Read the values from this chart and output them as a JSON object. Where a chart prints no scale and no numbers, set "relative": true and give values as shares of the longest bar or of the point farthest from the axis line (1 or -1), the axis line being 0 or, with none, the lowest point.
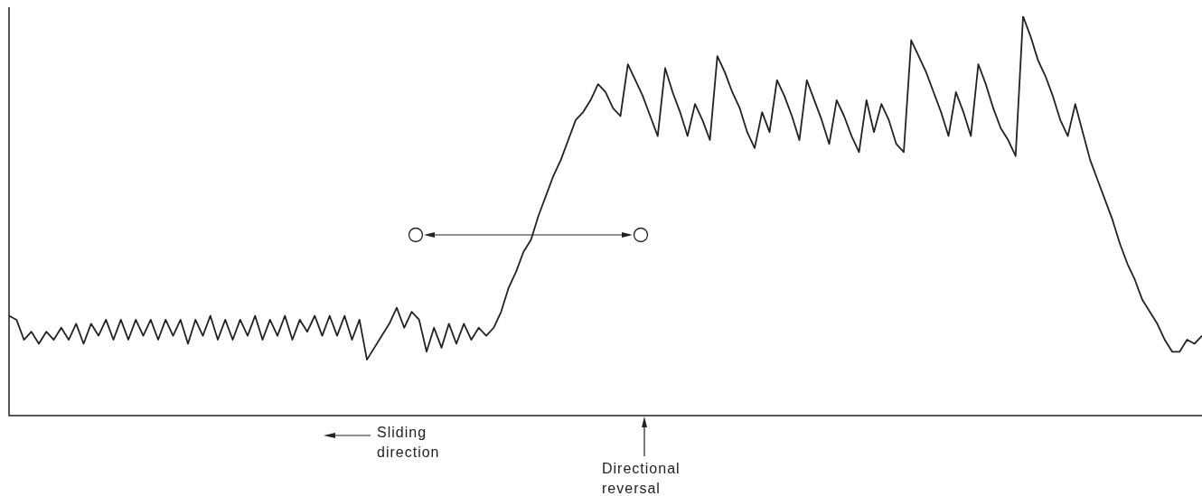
{
  "chart_data": {
    "type": "line",
    "relative": true,
    "categories": [
      null,
      null,
      null,
      null,
      null,
      null,
      null,
      null,
      null,
      null,
      null,
      null,
      null,
      null,
      null,
      null,
      null,
      null,
      null,
      null,
      null,
      null,
      null,
      null,
      null,
      null,
      null,
      null,
      null,
      null,
      null,
      null,
      null,
      null,
      null,
      null,
      null,
      null,
      null,
      null,
      null,
      null,
      null,
      null,
      null,
      null,
      null,
      null,
      null,
      null,
      null,
      null,
      null,
      null,
      null,
      null,
      null,
      null,
      null,
      null,
      null,
      null,
      null,
      null,
      null,
      null,
      null,
      null,
      null,
      null,
      null,
      null,
      null,
      null,
      null,
      null,
      null,
      null,
      null,
      null,
      null,
      null,
      null,
      null,
      null,
      null,
      null,
      null,
      null,
      null,
      null,
      null,
      null,
      null,
      null,
      null,
      null,
      null,
      null,
      null,
      null,
      null,
      null,
      null,
      null,
      null,
      null,
      null,
      null,
      null,
      null,
      null,
      null,
      null,
      null,
      null,
      null,
      null,
      null,
      null,
      null,
      null,
      null,
      null,
      null,
      null,
      null,
      null,
      null,
      null,
      null,
      null,
      null,
      null,
      null,
      null,
      null,
      null,
      null,
      null,
      null,
      null,
      null,
      null,
      null,
      null,
      null,
      null,
      null,
      null,
      null,
      null,
      null,
      null,
      null,
      null,
      null,
      null,
      null,
      null,
      null
    ],
    "series": [
      {
        "color": "#222222",
        "values": [
          0.25,
          0.24,
          0.19,
          0.21,
          0.18,
          0.21,
          0.19,
          0.22,
          0.19,
          0.23,
          0.18,
          0.23,
          0.2,
          0.24,
          0.19,
          0.24,
          0.19,
          0.24,
          0.2,
          0.24,
          0.19,
          0.24,
          0.2,
          0.24,
          0.18,
          0.24,
          0.2,
          0.25,
          0.19,
          0.24,
          0.19,
          0.24,
          0.2,
          0.25,
          0.19,
          0.24,
          0.2,
          0.25,
          0.19,
          0.24,
          0.21,
          0.25,
          0.2,
          0.25,
          0.2,
          0.25,
          0.19,
          0.24,
          0.14,
          0.17,
          0.2,
          0.23,
          0.27,
          0.22,
          0.26,
          0.24,
          0.16,
          0.22,
          0.17,
          0.23,
          0.18,
          0.23,
          0.19,
          0.22,
          0.2,
          0.22,
          0.26,
          0.32,
          0.36,
          0.41,
          0.44,
          0.5,
          0.55,
          0.6,
          0.64,
          0.69,
          0.74,
          0.76,
          0.79,
          0.83,
          0.81,
          0.77,
          0.75,
          0.88,
          0.84,
          0.8,
          0.75,
          0.7,
          0.87,
          0.81,
          0.76,
          0.7,
          0.78,
          0.74,
          0.69,
          0.9,
          0.86,
          0.81,
          0.77,
          0.71,
          0.67,
          0.76,
          0.71,
          0.84,
          0.8,
          0.75,
          0.69,
          0.84,
          0.79,
          0.74,
          0.68,
          0.79,
          0.75,
          0.7,
          0.66,
          0.79,
          0.71,
          0.78,
          0.74,
          0.68,
          0.66,
          0.94,
          0.9,
          0.86,
          0.81,
          0.76,
          0.7,
          0.81,
          0.76,
          0.7,
          0.88,
          0.83,
          0.77,
          0.72,
          0.69,
          0.65,
          1,
          0.95,
          0.89,
          0.85,
          0.8,
          0.74,
          0.7,
          0.78,
          0.71,
          0.64,
          0.59,
          0.54,
          0.49,
          0.43,
          0.38,
          0.34,
          0.29,
          0.26,
          0.23,
          0.19,
          0.16,
          0.16,
          0.19,
          0.18,
          0.2
        ]
      }
    ],
    "annotations": [
      "Sliding direction",
      "Directional reversal"
    ]
  }
}
